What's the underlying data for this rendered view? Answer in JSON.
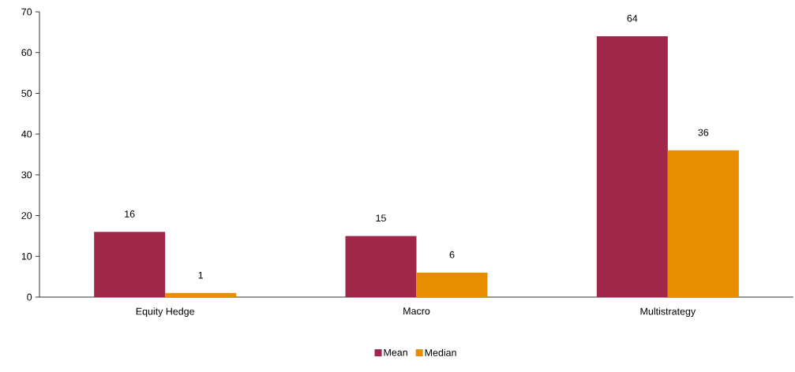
{
  "chart_data": {
    "type": "bar",
    "categories": [
      "Equity Hedge",
      "Macro",
      "Multistrategy"
    ],
    "series": [
      {
        "name": "Mean",
        "color": "#a0264a",
        "values": [
          16,
          15,
          64
        ]
      },
      {
        "name": "Median",
        "color": "#e88c00",
        "values": [
          1,
          6,
          36
        ]
      }
    ],
    "ylim": [
      0,
      70
    ],
    "yticks": [
      0,
      10,
      20,
      30,
      40,
      50,
      60,
      70
    ],
    "data_labels": true,
    "legend": "bottom"
  }
}
